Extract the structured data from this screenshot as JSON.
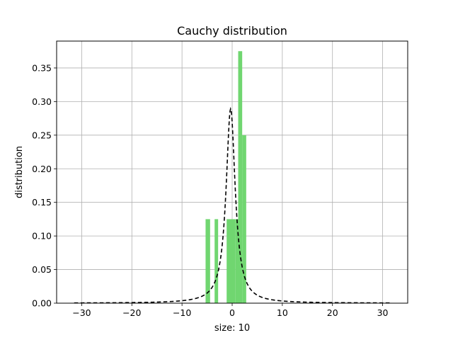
{
  "chart_data": {
    "type": "bar",
    "title": "Cauchy distribution",
    "xlabel": "size: 10",
    "ylabel": "distribution",
    "xlim": [
      -35,
      35
    ],
    "ylim": [
      0,
      0.39
    ],
    "grid": true,
    "x_ticks": [
      -30,
      -20,
      -10,
      0,
      10,
      20,
      30
    ],
    "x_tick_labels": [
      "−30",
      "−20",
      "−10",
      "0",
      "10",
      "20",
      "30"
    ],
    "y_ticks": [
      0.0,
      0.05,
      0.1,
      0.15,
      0.2,
      0.25,
      0.3,
      0.35
    ],
    "y_tick_labels": [
      "0.00",
      "0.05",
      "0.10",
      "0.15",
      "0.20",
      "0.25",
      "0.30",
      "0.35"
    ],
    "histogram": {
      "color": "#70d670",
      "bins": [
        {
          "x0": -5.3,
          "x1": -4.4,
          "value": 0.125
        },
        {
          "x0": -3.5,
          "x1": -2.8,
          "value": 0.125
        },
        {
          "x0": -1.1,
          "x1": 0.6,
          "value": 0.125
        },
        {
          "x0": 0.6,
          "x1": 1.2,
          "value": 0.125
        },
        {
          "x0": 1.2,
          "x1": 2.0,
          "value": 0.375
        },
        {
          "x0": 2.0,
          "x1": 2.8,
          "value": 0.25
        }
      ]
    },
    "pdf_curve": {
      "style": "dashed",
      "color": "#000000",
      "x_range": [
        -31.5,
        31.5
      ],
      "location": -0.3,
      "scale": 1.1
    }
  }
}
